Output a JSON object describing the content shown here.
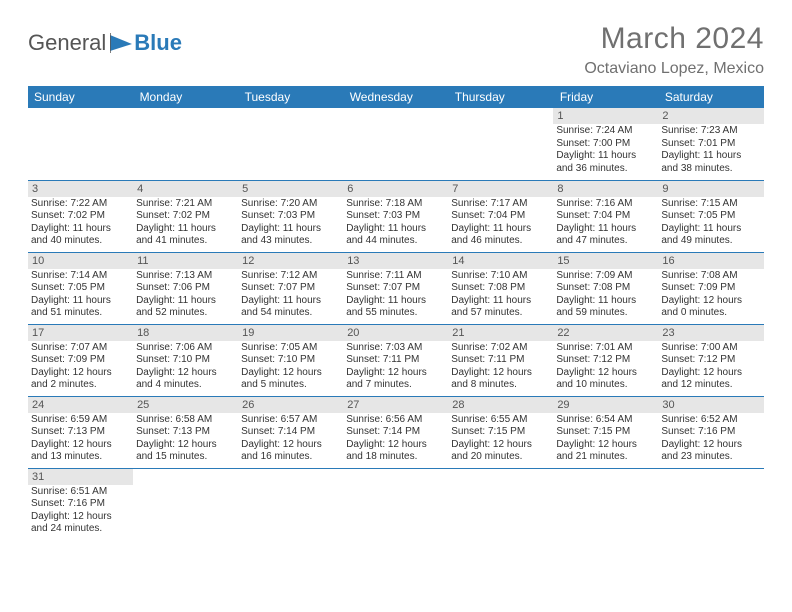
{
  "brand": {
    "word1": "General",
    "word2": "Blue"
  },
  "title": "March 2024",
  "location": "Octaviano Lopez, Mexico",
  "colors": {
    "header_bg": "#2a7ab8",
    "header_text": "#ffffff",
    "daynum_bg": "#e6e6e6",
    "title_color": "#707070",
    "row_border": "#2a7ab8",
    "body_text": "#333333"
  },
  "daysOfWeek": [
    "Sunday",
    "Monday",
    "Tuesday",
    "Wednesday",
    "Thursday",
    "Friday",
    "Saturday"
  ],
  "weeks": [
    [
      null,
      null,
      null,
      null,
      null,
      {
        "n": "1",
        "sunrise": "7:24 AM",
        "sunset": "7:00 PM",
        "daylight": "11 hours and 36 minutes."
      },
      {
        "n": "2",
        "sunrise": "7:23 AM",
        "sunset": "7:01 PM",
        "daylight": "11 hours and 38 minutes."
      }
    ],
    [
      {
        "n": "3",
        "sunrise": "7:22 AM",
        "sunset": "7:02 PM",
        "daylight": "11 hours and 40 minutes."
      },
      {
        "n": "4",
        "sunrise": "7:21 AM",
        "sunset": "7:02 PM",
        "daylight": "11 hours and 41 minutes."
      },
      {
        "n": "5",
        "sunrise": "7:20 AM",
        "sunset": "7:03 PM",
        "daylight": "11 hours and 43 minutes."
      },
      {
        "n": "6",
        "sunrise": "7:18 AM",
        "sunset": "7:03 PM",
        "daylight": "11 hours and 44 minutes."
      },
      {
        "n": "7",
        "sunrise": "7:17 AM",
        "sunset": "7:04 PM",
        "daylight": "11 hours and 46 minutes."
      },
      {
        "n": "8",
        "sunrise": "7:16 AM",
        "sunset": "7:04 PM",
        "daylight": "11 hours and 47 minutes."
      },
      {
        "n": "9",
        "sunrise": "7:15 AM",
        "sunset": "7:05 PM",
        "daylight": "11 hours and 49 minutes."
      }
    ],
    [
      {
        "n": "10",
        "sunrise": "7:14 AM",
        "sunset": "7:05 PM",
        "daylight": "11 hours and 51 minutes."
      },
      {
        "n": "11",
        "sunrise": "7:13 AM",
        "sunset": "7:06 PM",
        "daylight": "11 hours and 52 minutes."
      },
      {
        "n": "12",
        "sunrise": "7:12 AM",
        "sunset": "7:07 PM",
        "daylight": "11 hours and 54 minutes."
      },
      {
        "n": "13",
        "sunrise": "7:11 AM",
        "sunset": "7:07 PM",
        "daylight": "11 hours and 55 minutes."
      },
      {
        "n": "14",
        "sunrise": "7:10 AM",
        "sunset": "7:08 PM",
        "daylight": "11 hours and 57 minutes."
      },
      {
        "n": "15",
        "sunrise": "7:09 AM",
        "sunset": "7:08 PM",
        "daylight": "11 hours and 59 minutes."
      },
      {
        "n": "16",
        "sunrise": "7:08 AM",
        "sunset": "7:09 PM",
        "daylight": "12 hours and 0 minutes."
      }
    ],
    [
      {
        "n": "17",
        "sunrise": "7:07 AM",
        "sunset": "7:09 PM",
        "daylight": "12 hours and 2 minutes."
      },
      {
        "n": "18",
        "sunrise": "7:06 AM",
        "sunset": "7:10 PM",
        "daylight": "12 hours and 4 minutes."
      },
      {
        "n": "19",
        "sunrise": "7:05 AM",
        "sunset": "7:10 PM",
        "daylight": "12 hours and 5 minutes."
      },
      {
        "n": "20",
        "sunrise": "7:03 AM",
        "sunset": "7:11 PM",
        "daylight": "12 hours and 7 minutes."
      },
      {
        "n": "21",
        "sunrise": "7:02 AM",
        "sunset": "7:11 PM",
        "daylight": "12 hours and 8 minutes."
      },
      {
        "n": "22",
        "sunrise": "7:01 AM",
        "sunset": "7:12 PM",
        "daylight": "12 hours and 10 minutes."
      },
      {
        "n": "23",
        "sunrise": "7:00 AM",
        "sunset": "7:12 PM",
        "daylight": "12 hours and 12 minutes."
      }
    ],
    [
      {
        "n": "24",
        "sunrise": "6:59 AM",
        "sunset": "7:13 PM",
        "daylight": "12 hours and 13 minutes."
      },
      {
        "n": "25",
        "sunrise": "6:58 AM",
        "sunset": "7:13 PM",
        "daylight": "12 hours and 15 minutes."
      },
      {
        "n": "26",
        "sunrise": "6:57 AM",
        "sunset": "7:14 PM",
        "daylight": "12 hours and 16 minutes."
      },
      {
        "n": "27",
        "sunrise": "6:56 AM",
        "sunset": "7:14 PM",
        "daylight": "12 hours and 18 minutes."
      },
      {
        "n": "28",
        "sunrise": "6:55 AM",
        "sunset": "7:15 PM",
        "daylight": "12 hours and 20 minutes."
      },
      {
        "n": "29",
        "sunrise": "6:54 AM",
        "sunset": "7:15 PM",
        "daylight": "12 hours and 21 minutes."
      },
      {
        "n": "30",
        "sunrise": "6:52 AM",
        "sunset": "7:16 PM",
        "daylight": "12 hours and 23 minutes."
      }
    ],
    [
      {
        "n": "31",
        "sunrise": "6:51 AM",
        "sunset": "7:16 PM",
        "daylight": "12 hours and 24 minutes."
      },
      null,
      null,
      null,
      null,
      null,
      null
    ]
  ],
  "labels": {
    "sunrise": "Sunrise:",
    "sunset": "Sunset:",
    "daylight": "Daylight:"
  }
}
